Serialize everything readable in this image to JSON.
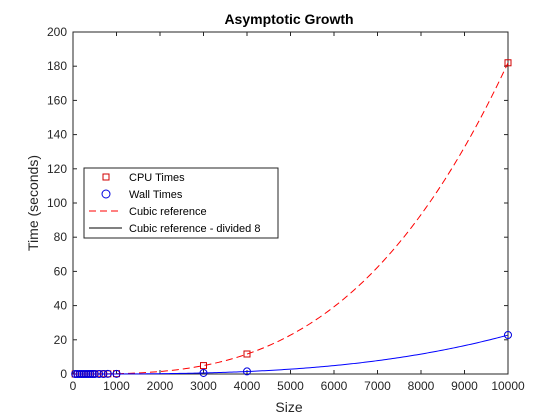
{
  "chart_data": {
    "type": "line",
    "title": "Asymptotic Growth",
    "xlabel": "Size",
    "ylabel": "Time (seconds)",
    "xlim": [
      0,
      10000
    ],
    "ylim": [
      0,
      200
    ],
    "xticks": [
      "0",
      "1000",
      "2000",
      "3000",
      "4000",
      "5000",
      "6000",
      "7000",
      "8000",
      "9000",
      "10000"
    ],
    "yticks": [
      "0",
      "20",
      "40",
      "60",
      "80",
      "100",
      "120",
      "140",
      "160",
      "180",
      "200"
    ],
    "grid": false,
    "legend_position": "middle-left",
    "series": [
      {
        "name": "CPU Times",
        "style": "markers",
        "marker": "square",
        "color": "#d00000",
        "x": [
          50,
          100,
          150,
          200,
          250,
          300,
          350,
          400,
          450,
          500,
          600,
          700,
          800,
          1000,
          3000,
          4000,
          10000
        ],
        "y": [
          0.0,
          0.0,
          0.0,
          0.0,
          0.0,
          0.0,
          0.0,
          0.1,
          0.1,
          0.1,
          0.1,
          0.1,
          0.1,
          0.2,
          4.9,
          11.7,
          182
        ]
      },
      {
        "name": "Wall Times",
        "style": "markers",
        "marker": "circle",
        "color": "#0000e0",
        "x": [
          50,
          100,
          150,
          200,
          250,
          300,
          350,
          400,
          450,
          500,
          600,
          700,
          800,
          1000,
          3000,
          4000,
          10000
        ],
        "y": [
          0.0,
          0.0,
          0.0,
          0.0,
          0.0,
          0.0,
          0.0,
          0.0,
          0.0,
          0.0,
          0.0,
          0.0,
          0.1,
          0.1,
          0.6,
          1.5,
          22.8
        ]
      },
      {
        "name": "Cubic reference",
        "style": "dashed",
        "color": "#ff0000",
        "formula": "182 * (x/10000)^3"
      },
      {
        "name": "Cubic reference - divided 8",
        "style": "solid",
        "color": "#0000ff",
        "formula": "22.75 * (x/10000)^3"
      }
    ]
  }
}
